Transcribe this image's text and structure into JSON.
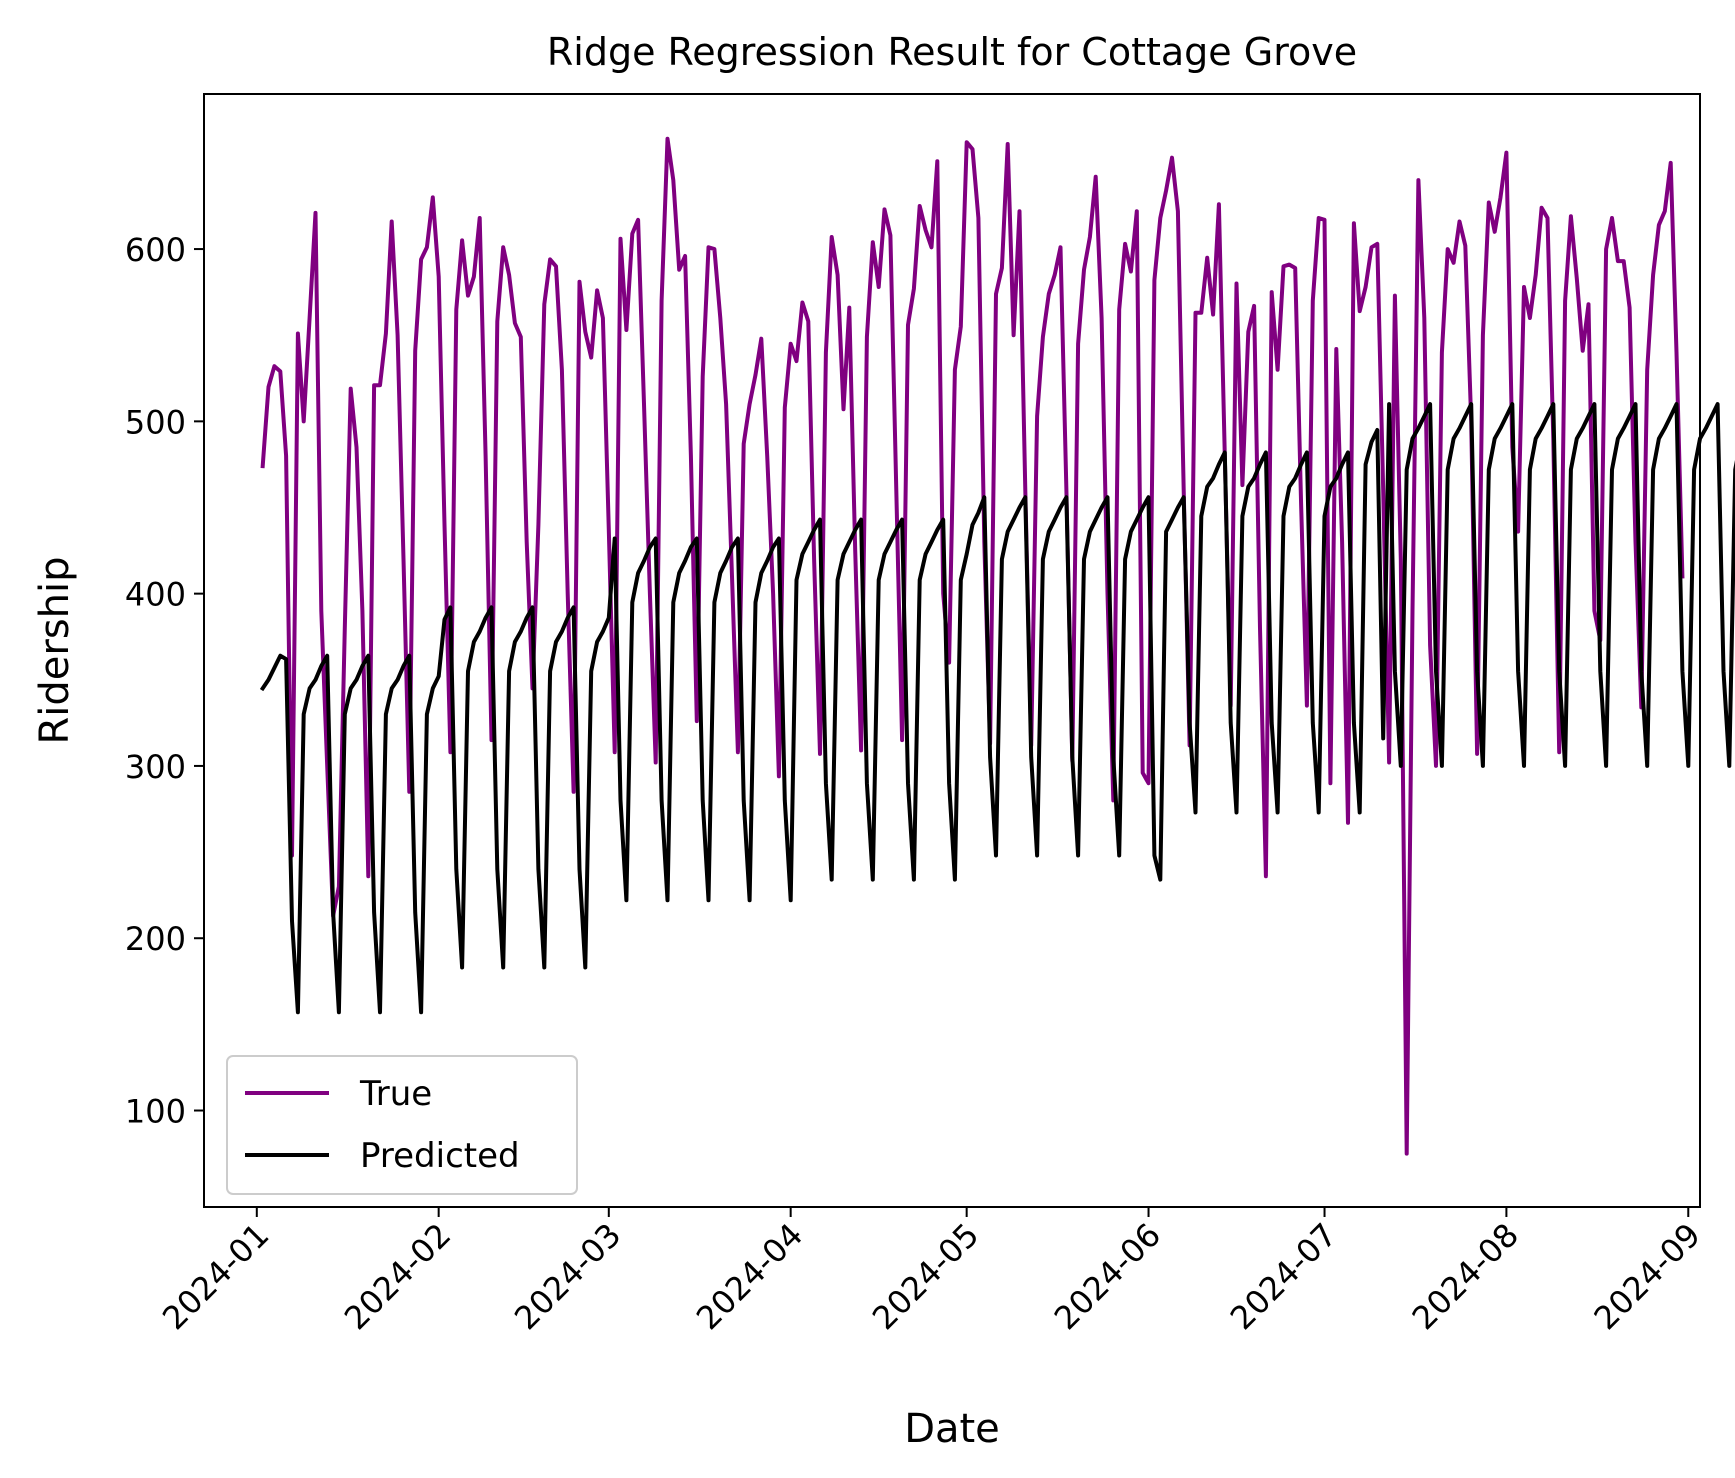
{
  "chart_data": {
    "type": "line",
    "title": "Ridge Regression Result for Cottage Grove",
    "xlabel": "Date",
    "ylabel": "Ridership",
    "x_ticks": [
      "2024-01",
      "2024-02",
      "2024-03",
      "2024-04",
      "2024-05",
      "2024-06",
      "2024-07",
      "2024-08",
      "2024-09"
    ],
    "y_ticks": [
      100,
      200,
      300,
      400,
      500,
      600
    ],
    "xlim": [
      "2023-12-23",
      "2024-09-03"
    ],
    "ylim": [
      44,
      690
    ],
    "grid": false,
    "legend_position": "lower left",
    "x_start": "2024-01-02",
    "x_end": "2024-08-31",
    "series": [
      {
        "name": "True",
        "color": "#800080",
        "values": [
          474,
          520,
          532,
          529,
          480,
          248,
          551,
          500,
          560,
          621,
          390,
          300,
          213,
          230,
          380,
          519,
          485,
          390,
          236,
          521,
          521,
          551,
          616,
          550,
          420,
          285,
          541,
          594,
          601,
          630,
          584,
          440,
          308,
          565,
          605,
          573,
          584,
          618,
          480,
          315,
          558,
          601,
          585,
          557,
          549,
          430,
          345,
          440,
          568,
          594,
          590,
          530,
          400,
          285,
          581,
          552,
          537,
          576,
          560,
          437,
          308,
          606,
          553,
          609,
          617,
          510,
          400,
          302,
          570,
          664,
          640,
          588,
          596,
          480,
          326,
          526,
          601,
          600,
          560,
          510,
          410,
          308,
          487,
          510,
          527,
          548,
          480,
          400,
          294,
          508,
          545,
          535,
          569,
          558,
          420,
          307,
          540,
          607,
          585,
          507,
          566,
          425,
          309,
          549,
          604,
          578,
          623,
          608,
          460,
          315,
          556,
          577,
          625,
          611,
          601,
          651,
          400,
          360,
          530,
          555,
          662,
          658,
          618,
          430,
          313,
          574,
          589,
          661,
          550,
          622,
          460,
          312,
          503,
          549,
          574,
          585,
          601,
          460,
          303,
          545,
          588,
          607,
          642,
          560,
          400,
          280,
          565,
          603,
          587,
          622,
          296,
          290,
          582,
          618,
          634,
          653,
          622,
          460,
          312,
          563,
          563,
          595,
          562,
          626,
          480,
          335,
          580,
          463,
          552,
          567,
          380,
          236,
          575,
          530,
          590,
          591,
          589,
          452,
          335,
          570,
          618,
          617,
          290,
          542,
          430,
          267,
          615,
          564,
          578,
          601,
          603,
          460,
          302,
          573,
          420,
          75,
          390,
          640,
          560,
          370,
          300,
          540,
          600,
          592,
          616,
          602,
          500,
          307,
          550,
          627,
          610,
          630,
          656,
          485,
          436,
          578,
          560,
          585,
          624,
          618,
          490,
          308,
          570,
          619,
          583,
          541,
          568,
          390,
          373,
          600,
          618,
          593,
          593,
          566,
          430,
          334,
          530,
          585,
          614,
          622,
          650,
          540,
          410
        ]
      },
      {
        "name": "Predicted",
        "color": "#000000",
        "values": [
          345,
          350,
          357,
          364,
          362,
          210,
          157,
          330,
          345,
          350,
          358,
          364,
          215,
          157,
          330,
          345,
          350,
          358,
          364,
          215,
          157,
          330,
          345,
          350,
          358,
          364,
          215,
          157,
          330,
          345,
          352,
          385,
          392,
          240,
          183,
          355,
          372,
          378,
          386,
          392,
          240,
          183,
          355,
          372,
          378,
          386,
          392,
          240,
          183,
          355,
          372,
          378,
          386,
          392,
          240,
          183,
          355,
          372,
          378,
          386,
          432,
          280,
          222,
          395,
          412,
          419,
          427,
          432,
          280,
          222,
          395,
          412,
          419,
          427,
          432,
          280,
          222,
          395,
          412,
          419,
          427,
          432,
          280,
          222,
          395,
          412,
          419,
          427,
          432,
          280,
          222,
          408,
          423,
          430,
          437,
          443,
          290,
          234,
          408,
          423,
          430,
          437,
          443,
          290,
          234,
          408,
          423,
          430,
          437,
          443,
          290,
          234,
          408,
          423,
          430,
          437,
          443,
          290,
          234,
          408,
          423,
          440,
          447,
          456,
          305,
          248,
          420,
          436,
          443,
          450,
          456,
          305,
          248,
          420,
          436,
          443,
          450,
          456,
          305,
          248,
          420,
          436,
          443,
          450,
          456,
          305,
          248,
          420,
          436,
          443,
          450,
          456,
          248,
          234,
          436,
          443,
          450,
          456,
          325,
          273,
          445,
          462,
          467,
          475,
          482,
          325,
          273,
          445,
          462,
          467,
          475,
          482,
          325,
          273,
          445,
          462,
          467,
          475,
          482,
          325,
          273,
          445,
          462,
          467,
          475,
          482,
          325,
          273,
          475,
          488,
          495,
          316,
          510,
          355,
          300,
          472,
          490,
          496,
          503,
          510,
          355,
          300,
          472,
          490,
          496,
          503,
          510,
          355,
          300,
          472,
          490,
          496,
          503,
          510,
          355,
          300,
          472,
          490,
          496,
          503,
          510,
          355,
          300,
          472,
          490,
          496,
          503,
          510,
          355,
          300,
          472,
          490,
          496,
          503,
          510,
          355,
          300,
          472,
          490,
          496,
          503,
          510,
          355,
          300,
          472,
          490,
          496,
          503,
          510,
          355,
          300,
          472,
          490,
          496,
          503,
          510,
          352
        ]
      }
    ]
  }
}
